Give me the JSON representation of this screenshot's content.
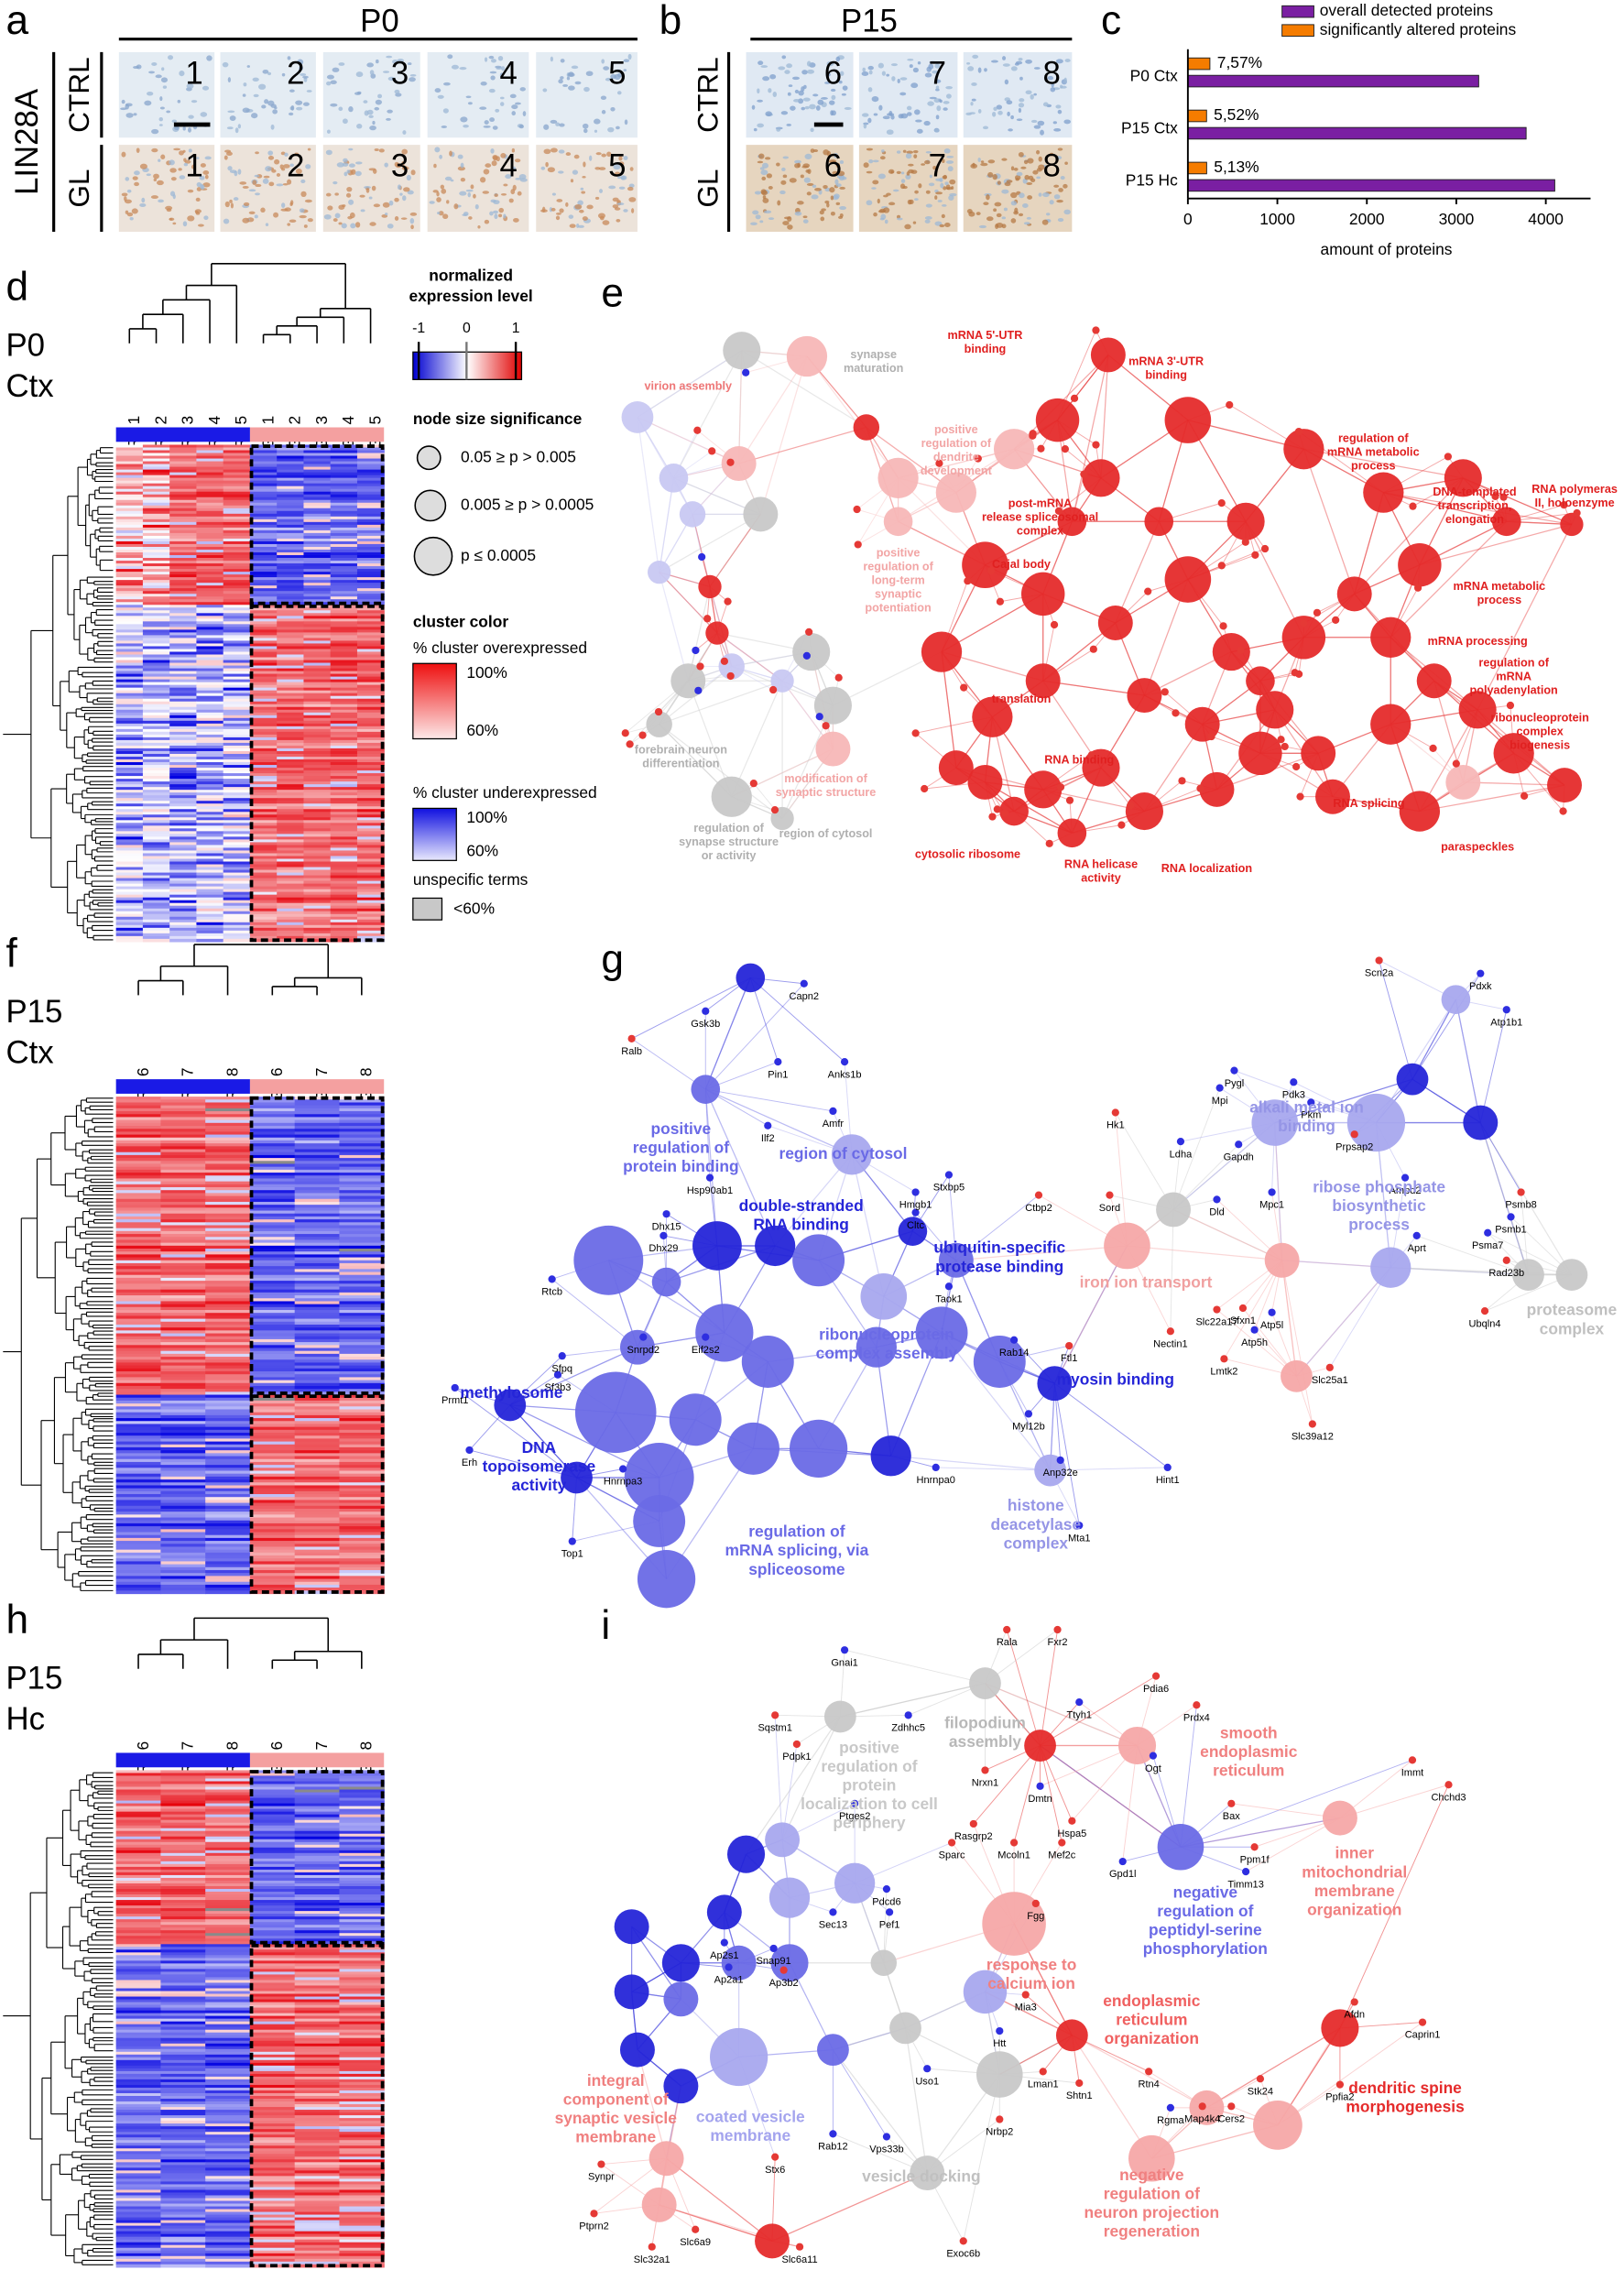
{
  "panel_a": {
    "letter": "a",
    "title": "P0",
    "stain": "LIN28A",
    "rows": [
      "CTRL",
      "GL"
    ],
    "samples": [
      "1",
      "2",
      "3",
      "4",
      "5"
    ]
  },
  "panel_b": {
    "letter": "b",
    "title": "P15",
    "rows": [
      "CTRL",
      "GL"
    ],
    "samples": [
      "6",
      "7",
      "8"
    ]
  },
  "panel_c": {
    "letter": "c",
    "type": "bar",
    "categories": [
      "P0 Ctx",
      "P15 Ctx",
      "P15 Hc"
    ],
    "series": [
      {
        "name": "overall detected proteins",
        "color": "#7a1fa2",
        "values": [
          3250,
          3780,
          4100
        ]
      },
      {
        "name": "significantly altered proteins",
        "color": "#f57c00",
        "values": [
          246,
          209,
          210
        ]
      }
    ],
    "annotations": [
      "7,57%",
      "5,52%",
      "5,13%"
    ],
    "xlabel": "amount of proteins",
    "xlim": [
      0,
      4500
    ],
    "xticks": [
      0,
      1000,
      2000,
      3000,
      4000
    ]
  },
  "panel_d": {
    "letter": "d",
    "group": [
      "P0",
      "Ctx"
    ],
    "columns": [
      "CTRL 1",
      "CTRL 2",
      "CTRL 3",
      "CTRL 4",
      "CTRL 5",
      "GL 1",
      "GL 2",
      "GL 3",
      "GL 4",
      "GL 5"
    ]
  },
  "legend": {
    "colorbar_title": [
      "normalized",
      "expression level"
    ],
    "colorbar_ticks": [
      -1,
      0,
      1
    ],
    "node_size_title": "node size significance",
    "node_sizes": [
      "0.05 ≥ p > 0.005",
      "0.005 ≥ p > 0.0005",
      "p ≤ 0.0005"
    ],
    "cluster_color": "cluster color",
    "overexpressed": "% cluster overexpressed",
    "underexpressed": "% cluster underexpressed",
    "scale_high": "100%",
    "scale_low": "60%",
    "unspecific": "unspecific terms",
    "unspecific_range": "<60%"
  },
  "panel_e": {
    "letter": "e",
    "terms": [
      [
        "mRNA 5'-UTR",
        "binding"
      ],
      [
        "mRNA 3'-UTR",
        "binding"
      ],
      [
        "synapse",
        "maturation"
      ],
      [
        "virion assembly"
      ],
      [
        "positive",
        "regulation of",
        "dendrite",
        "development"
      ],
      [
        "regulation of",
        "mRNA metabolic",
        "process"
      ],
      [
        "DNA-templated",
        "transcription,",
        "elongation"
      ],
      [
        "RNA polymeras",
        "II, holoenzyme"
      ],
      [
        "post-mRNA",
        "release spliceosomal",
        "complex"
      ],
      [
        "Cajal body"
      ],
      [
        "positive",
        "regulation of",
        "long-term",
        "synaptic",
        "potentiation"
      ],
      [
        "mRNA metabolic",
        "process"
      ],
      [
        "mRNA processing"
      ],
      [
        "regulation of",
        "mRNA",
        "polyadenylation"
      ],
      [
        "translation"
      ],
      [
        "ribonucleoprotein",
        "complex",
        "biogenesis"
      ],
      [
        "RNA binding"
      ],
      [
        "forebrain neuron",
        "differentiation"
      ],
      [
        "modification of",
        "synaptic structure"
      ],
      [
        "regulation of",
        "synapse structure",
        "or activity"
      ],
      [
        "region of cytosol"
      ],
      [
        "RNA splicing"
      ],
      [
        "paraspeckles"
      ],
      [
        "cytosolic ribosome"
      ],
      [
        "RNA helicase",
        "activity"
      ],
      [
        "RNA localization"
      ]
    ]
  },
  "panel_f": {
    "letter": "f",
    "group": [
      "P15",
      "Ctx"
    ],
    "columns": [
      "CTRL 6",
      "CTRL 7",
      "CTRL 8",
      "GL 6",
      "GL 7",
      "GL 8"
    ]
  },
  "panel_g": {
    "letter": "g",
    "terms": [
      [
        "positive",
        "regulation of",
        "protein binding"
      ],
      [
        "region of cytosol"
      ],
      [
        "double-stranded",
        "RNA binding"
      ],
      [
        "ubiquitin-specific",
        "protease binding"
      ],
      [
        "ribonucleoprotein",
        "complex assembly"
      ],
      [
        "iron ion transport"
      ],
      [
        "alkali metal ion",
        "binding"
      ],
      [
        "ribose phosphate",
        "biosynthetic",
        "process"
      ],
      [
        "proteasome",
        "complex"
      ],
      [
        "myosin binding"
      ],
      [
        "methylosome"
      ],
      [
        "DNA",
        "topoisomerase",
        "activity"
      ],
      [
        "regulation of",
        "mRNA splicing, via",
        "spliceosome"
      ],
      [
        "histone",
        "deacetylase",
        "complex"
      ]
    ],
    "genes": [
      "Capn2",
      "Gsk3b",
      "Ralb",
      "Pin1",
      "Anks1b",
      "Amfr",
      "Ilf2",
      "Hsp90ab1",
      "Stxbp5",
      "Ctbp2",
      "Sord",
      "Hmgb1",
      "Cltc",
      "Dhx15",
      "Dhx29",
      "Rtcb",
      "Taok1",
      "Rab14",
      "Ftl1",
      "Nectin1",
      "Lmtk2",
      "Slc22a17",
      "Sfxn1",
      "Atp5h",
      "Atp5l",
      "Slc25a1",
      "Slc39a12",
      "Prmt1",
      "Erh",
      "Sf3b3",
      "Sfpq",
      "Snrpd2",
      "Eif2s2",
      "Hnrnpa3",
      "Top1",
      "Hnrnpa0",
      "Myl12b",
      "Anp32e",
      "Hint1",
      "Mta1",
      "Hk1",
      "Mpi",
      "Pygl",
      "Ldha",
      "Gapdh",
      "Dld",
      "Pdk3",
      "Pkm",
      "Mpc1",
      "Prpsap2",
      "Scn2a",
      "Pdxk",
      "Atp1b1",
      "Ampd2",
      "Psmb8",
      "Psmb1",
      "Psma7",
      "Aprt",
      "Rad23b",
      "Ubqln4"
    ]
  },
  "panel_h": {
    "letter": "h",
    "group": [
      "P15",
      "Hc"
    ],
    "columns": [
      "CTRL 6",
      "CTRL 7",
      "CTRL 8",
      "GL 6",
      "GL 7",
      "GL 8"
    ]
  },
  "panel_i": {
    "letter": "i",
    "terms": [
      [
        "filopodium",
        "assembly"
      ],
      [
        "positive",
        "regulation of",
        "protein",
        "localization to cell",
        "periphery"
      ],
      [
        "smooth",
        "endoplasmic",
        "reticulum"
      ],
      [
        "negative",
        "regulation of",
        "peptidyl-serine",
        "phosphorylation"
      ],
      [
        "inner",
        "mitochondrial",
        "membrane",
        "organization"
      ],
      [
        "response to",
        "calcium ion"
      ],
      [
        "endoplasmic",
        "reticulum",
        "organization"
      ],
      [
        "dendritic spine",
        "morphogenesis"
      ],
      [
        "integral",
        "component of",
        "synaptic vesicle",
        "membrane"
      ],
      [
        "coated vesicle",
        "membrane"
      ],
      [
        "vesicle docking"
      ],
      [
        "negative",
        "regulation of",
        "neuron projection",
        "regeneration"
      ]
    ],
    "genes": [
      "Gnai1",
      "Rala",
      "Fxr2",
      "Sqstm1",
      "Zdhhc5",
      "Pdpk1",
      "Ttyh1",
      "Pdia6",
      "Prdx4",
      "Immt",
      "Chchd3",
      "Ogt",
      "Bax",
      "Ppm1f",
      "Timm13",
      "Gpd1l",
      "Nrxn1",
      "Dmtn",
      "Rasgrp2",
      "Sparc",
      "Mcoln1",
      "Hspa5",
      "Mef2c",
      "Fgg",
      "Ptges2",
      "Pdcd6",
      "Pef1",
      "Sec13",
      "Ap2s1",
      "Snap91",
      "Ap2a1",
      "Ap3b2",
      "Mia3",
      "Htt",
      "Lman1",
      "Shtn1",
      "Uso1",
      "Nrbp2",
      "Rab12",
      "Vps33b",
      "Rtn4",
      "Rgma",
      "Map4k4",
      "Cers2",
      "Stk24",
      "Afdn",
      "Caprin1",
      "Ppfia2",
      "Synpr",
      "Stx6",
      "Ptprn2",
      "Slc32a1",
      "Slc6a9",
      "Slc6a11",
      "Exoc6b"
    ]
  }
}
